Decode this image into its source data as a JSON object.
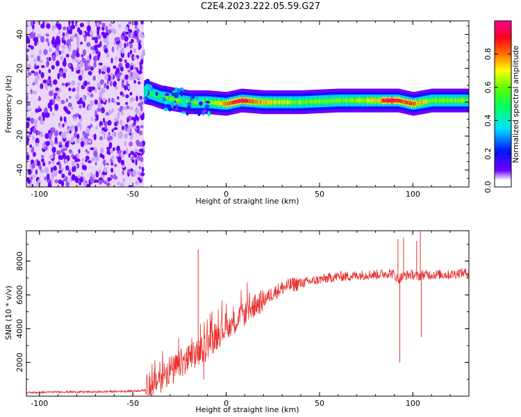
{
  "title": "C2E4.2023.222.05.59.G27",
  "colors": {
    "snr_line": "#e8312f",
    "frame": "#000000",
    "colormap": [
      "#ffffff",
      "#d8b8f8",
      "#6a00ff",
      "#0018ff",
      "#00e0ff",
      "#00ff30",
      "#c8ff00",
      "#ff7000",
      "#ff0020",
      "#ff0090"
    ]
  },
  "chart_data": [
    {
      "type": "heatmap",
      "title": "C2E4.2023.222.05.59.G27",
      "xlabel": "Height of straight line (km)",
      "ylabel": "Frequency (Hz)",
      "xlim": [
        -107,
        130
      ],
      "ylim": [
        -50,
        48
      ],
      "xticks": [
        -100,
        -50,
        0,
        50,
        100
      ],
      "yticks": [
        -40,
        -20,
        0,
        20,
        40
      ],
      "grid": false,
      "colorbar": {
        "label": "Normalized spectral amplitude",
        "range": [
          0.0,
          1.0
        ],
        "ticks": [
          "0.0",
          "0.2",
          "0.4",
          "0.6",
          "0.8"
        ],
        "colormap": "rainbow"
      },
      "noise_region_x": [
        -107,
        -44
      ],
      "ridge": [
        {
          "x": -44,
          "y": 6,
          "amp": 0.45
        },
        {
          "x": -40,
          "y": 5,
          "amp": 0.5
        },
        {
          "x": -35,
          "y": 3,
          "amp": 0.55
        },
        {
          "x": -30,
          "y": 2,
          "amp": 0.6
        },
        {
          "x": -25,
          "y": 1,
          "amp": 0.6
        },
        {
          "x": -20,
          "y": 0,
          "amp": 0.55
        },
        {
          "x": -15,
          "y": 0,
          "amp": 0.6
        },
        {
          "x": -10,
          "y": 0,
          "amp": 0.6
        },
        {
          "x": 0,
          "y": -1,
          "amp": 0.8
        },
        {
          "x": 8,
          "y": 1,
          "amp": 0.95
        },
        {
          "x": 20,
          "y": 0,
          "amp": 0.75
        },
        {
          "x": 40,
          "y": 0,
          "amp": 0.6
        },
        {
          "x": 60,
          "y": 1,
          "amp": 0.6
        },
        {
          "x": 80,
          "y": 1,
          "amp": 0.7
        },
        {
          "x": 86,
          "y": 1,
          "amp": 0.98
        },
        {
          "x": 92,
          "y": 1,
          "amp": 0.9
        },
        {
          "x": 100,
          "y": -1,
          "amp": 0.85
        },
        {
          "x": 110,
          "y": 1,
          "amp": 0.6
        },
        {
          "x": 130,
          "y": 1,
          "amp": 0.6
        }
      ]
    },
    {
      "type": "line",
      "xlabel": "Height of straight line (km)",
      "ylabel": "SNR (10 * v/v)",
      "xlim": [
        -107,
        130
      ],
      "ylim": [
        0,
        9800
      ],
      "xticks": [
        -100,
        -50,
        0,
        50,
        100
      ],
      "yticks": [
        2000,
        4000,
        6000,
        8000
      ],
      "grid": false,
      "series": [
        {
          "x": [
            -107,
            -90,
            -70,
            -50,
            -43,
            -40,
            -37,
            -35,
            -33,
            -30,
            -28,
            -25,
            -23,
            -20,
            -18,
            -16,
            -15,
            -13,
            -10,
            -8,
            -5,
            -3,
            0,
            3,
            5,
            8,
            10,
            15,
            20,
            25,
            30,
            35,
            40,
            45,
            50,
            55,
            60,
            65,
            70,
            75,
            80,
            85,
            88,
            90,
            92,
            93,
            95,
            98,
            100,
            102,
            103,
            105,
            110,
            115,
            120,
            125,
            130
          ],
          "y": [
            200,
            250,
            250,
            300,
            350,
            600,
            900,
            1100,
            1300,
            1600,
            1500,
            1900,
            2000,
            2200,
            2300,
            2500,
            2500,
            2600,
            3100,
            3300,
            3600,
            3900,
            4100,
            4300,
            4400,
            4700,
            4900,
            5300,
            5700,
            6100,
            6400,
            6600,
            6700,
            6800,
            6900,
            7000,
            7100,
            7100,
            7150,
            7200,
            7200,
            7250,
            7300,
            7200,
            6900,
            7000,
            7100,
            7200,
            7200,
            7100,
            7100,
            7200,
            7200,
            7200,
            7200,
            7300,
            7300
          ]
        }
      ],
      "spikes": [
        {
          "x": -15,
          "y": 8700
        },
        {
          "x": -12,
          "y": 1000
        },
        {
          "x": 92,
          "y": 9300
        },
        {
          "x": 93,
          "y": 2000
        },
        {
          "x": 95,
          "y": 9400
        },
        {
          "x": 102,
          "y": 9200
        },
        {
          "x": 104,
          "y": 9750
        },
        {
          "x": 104.5,
          "y": 3500
        }
      ]
    }
  ]
}
